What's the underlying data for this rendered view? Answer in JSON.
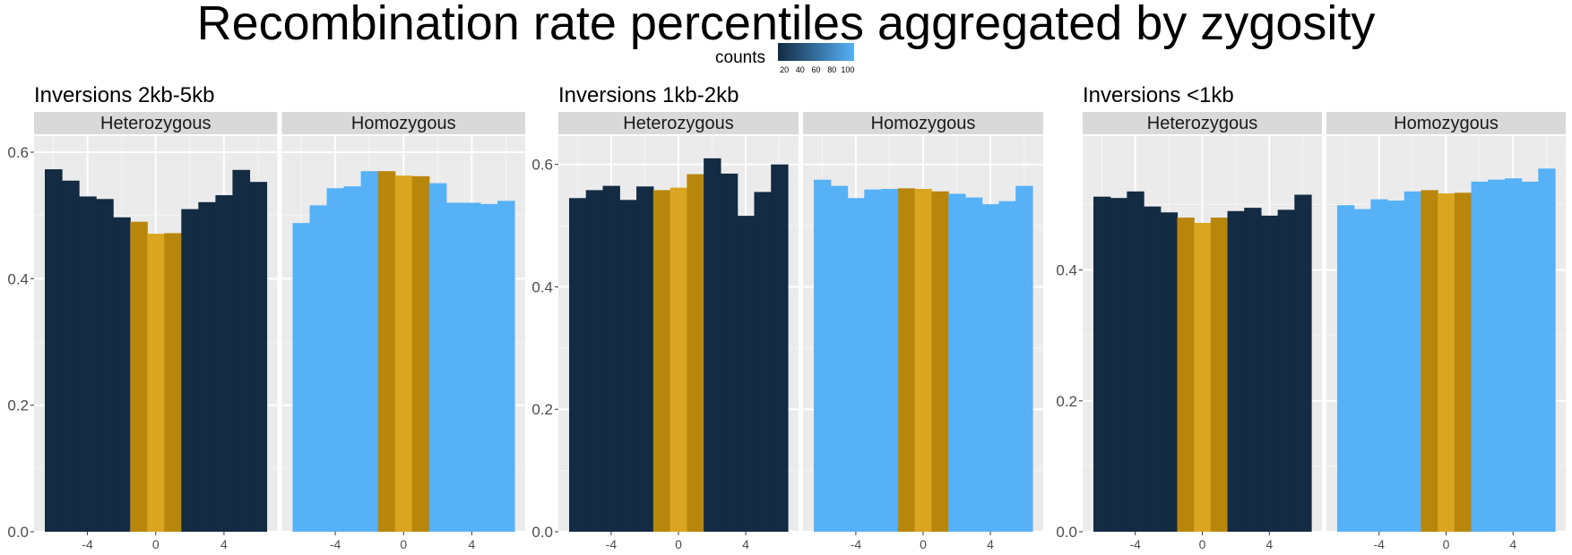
{
  "title": "Recombination rate percentiles aggregated by zygosity",
  "legend": {
    "title": "counts",
    "ticks": [
      20,
      40,
      60,
      80,
      100
    ],
    "range": [
      12,
      108
    ],
    "low_color": "#132b43",
    "high_color": "#56b1f7"
  },
  "colors": {
    "inversion_dark": "#b8860b",
    "inversion_light": "#daa520",
    "panel_bg": "#ebebeb",
    "strip_bg": "#d9d9d9"
  },
  "chart_data": [
    {
      "type": "bar",
      "title": "Inversions 2kb-5kb",
      "ylim": [
        0,
        0.6
      ],
      "yticks": [
        0.0,
        0.2,
        0.4,
        0.6
      ],
      "ytick_labels": [
        "0.0",
        "0.2",
        "0.4",
        "0.6"
      ],
      "xticks": [
        -4,
        0,
        4
      ],
      "x": [
        -6,
        -5,
        -4,
        -3,
        -2,
        -1,
        0,
        1,
        2,
        3,
        4,
        5,
        6
      ],
      "facets": [
        {
          "name": "Heterozygous",
          "values": [
            0.573,
            0.555,
            0.53,
            0.526,
            0.497,
            0.49,
            0.471,
            0.472,
            0.51,
            0.521,
            0.532,
            0.572,
            0.553
          ],
          "counts": [
            12,
            12,
            12,
            12,
            12,
            null,
            null,
            null,
            12,
            12,
            12,
            12,
            12
          ]
        },
        {
          "name": "Homozygous",
          "values": [
            0.488,
            0.516,
            0.543,
            0.546,
            0.57,
            0.57,
            0.563,
            0.562,
            0.551,
            0.52,
            0.52,
            0.518,
            0.523
          ],
          "counts": [
            108,
            108,
            108,
            108,
            108,
            null,
            null,
            null,
            108,
            108,
            108,
            108,
            108
          ]
        }
      ]
    },
    {
      "type": "bar",
      "title": "Inversions 1kb-2kb",
      "ylim": [
        0,
        0.62
      ],
      "yticks": [
        0.0,
        0.2,
        0.4,
        0.6
      ],
      "ytick_labels": [
        "0.0",
        "0.2",
        "0.4",
        "0.6"
      ],
      "xticks": [
        -4,
        0,
        4
      ],
      "x": [
        -6,
        -5,
        -4,
        -3,
        -2,
        -1,
        0,
        1,
        2,
        3,
        4,
        5,
        6
      ],
      "facets": [
        {
          "name": "Heterozygous",
          "values": [
            0.545,
            0.558,
            0.565,
            0.542,
            0.564,
            0.558,
            0.562,
            0.584,
            0.61,
            0.585,
            0.516,
            0.555,
            0.6
          ],
          "counts": [
            12,
            12,
            12,
            12,
            12,
            null,
            null,
            null,
            12,
            12,
            12,
            12,
            12
          ]
        },
        {
          "name": "Homozygous",
          "values": [
            0.575,
            0.565,
            0.545,
            0.559,
            0.56,
            0.561,
            0.56,
            0.556,
            0.552,
            0.546,
            0.535,
            0.54,
            0.565
          ],
          "counts": [
            108,
            108,
            108,
            108,
            108,
            null,
            null,
            null,
            108,
            108,
            108,
            108,
            108
          ]
        }
      ]
    },
    {
      "type": "bar",
      "title": "Inversions <1kb",
      "ylim": [
        0,
        0.58
      ],
      "yticks": [
        0.0,
        0.2,
        0.4
      ],
      "ytick_labels": [
        "0.0",
        "0.2",
        "0.4"
      ],
      "xticks": [
        -4,
        0,
        4
      ],
      "x": [
        -6,
        -5,
        -4,
        -3,
        -2,
        -1,
        0,
        1,
        2,
        3,
        4,
        5,
        6
      ],
      "facets": [
        {
          "name": "Heterozygous",
          "values": [
            0.512,
            0.51,
            0.52,
            0.497,
            0.488,
            0.48,
            0.472,
            0.48,
            0.49,
            0.495,
            0.483,
            0.492,
            0.515
          ],
          "counts": [
            12,
            12,
            12,
            12,
            12,
            null,
            null,
            null,
            12,
            12,
            12,
            12,
            12
          ]
        },
        {
          "name": "Homozygous",
          "values": [
            0.499,
            0.493,
            0.508,
            0.506,
            0.52,
            0.522,
            0.517,
            0.518,
            0.535,
            0.538,
            0.54,
            0.535,
            0.555
          ],
          "counts": [
            108,
            108,
            108,
            108,
            108,
            null,
            null,
            null,
            108,
            108,
            108,
            108,
            108
          ]
        }
      ]
    }
  ]
}
